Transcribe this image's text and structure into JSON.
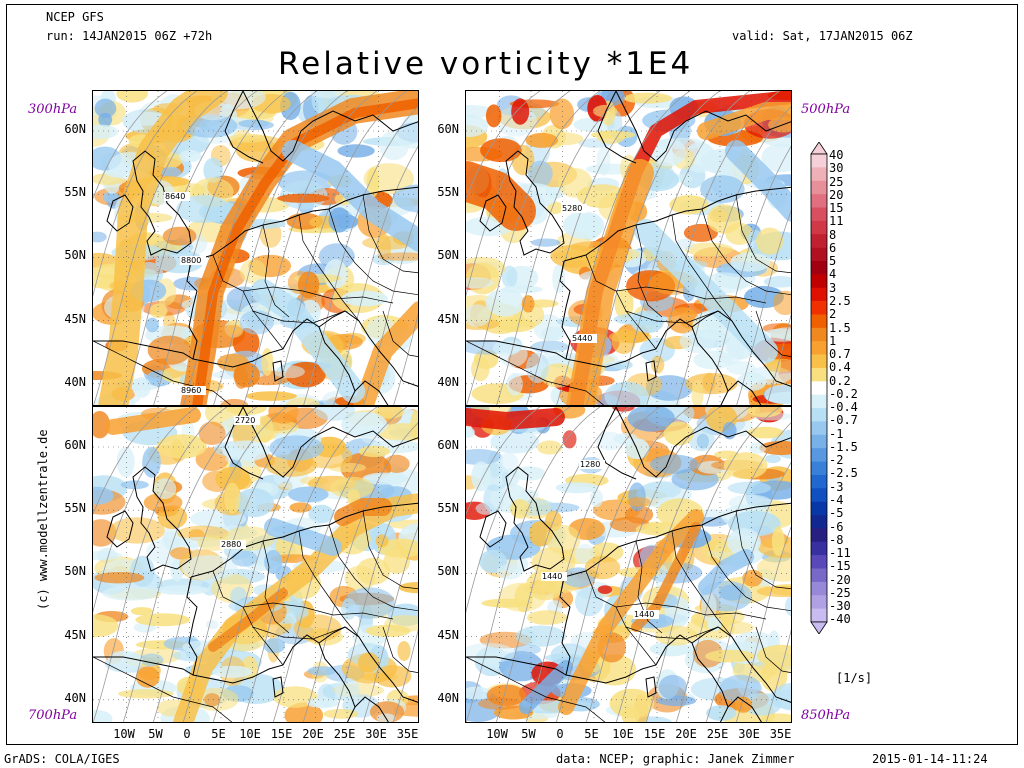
{
  "header": {
    "model": "NCEP GFS",
    "run": "run: 14JAN2015 06Z +72h",
    "valid": "valid: Sat, 17JAN2015 06Z",
    "title": "Relative vorticity *1E4"
  },
  "panels": [
    {
      "level": "300hPa",
      "contours": [
        "8640",
        "8800",
        "8960"
      ],
      "fill": "upper"
    },
    {
      "level": "500hPa",
      "contours": [
        "5280",
        "5440"
      ],
      "fill": "mid"
    },
    {
      "level": "700hPa",
      "contours": [
        "2720",
        "2880"
      ],
      "fill": "low"
    },
    {
      "level": "850hPa",
      "contours": [
        "1280",
        "1440",
        "1440"
      ],
      "fill": "low2"
    }
  ],
  "axes": {
    "lat_labels": [
      "60N",
      "55N",
      "50N",
      "45N",
      "40N"
    ],
    "lon_labels": [
      "10W",
      "5W",
      "0",
      "5E",
      "10E",
      "15E",
      "20E",
      "25E",
      "30E",
      "35E"
    ]
  },
  "colorbar": {
    "labels": [
      "40",
      "30",
      "25",
      "20",
      "15",
      "11",
      "8",
      "6",
      "5",
      "4",
      "3",
      "2.5",
      "2",
      "1.5",
      "1",
      "0.7",
      "0.4",
      "0.2",
      "-0.2",
      "-0.4",
      "-0.7",
      "-1",
      "-1.5",
      "-2",
      "-2.5",
      "-3",
      "-4",
      "-5",
      "-6",
      "-8",
      "-11",
      "-15",
      "-20",
      "-25",
      "-30",
      "-40"
    ],
    "colors": [
      "#f6d0d8",
      "#f0b0b8",
      "#e8909a",
      "#e07080",
      "#d85060",
      "#d03848",
      "#c02030",
      "#b01020",
      "#a00010",
      "#c00000",
      "#e01000",
      "#f03000",
      "#f06000",
      "#f08820",
      "#f8a030",
      "#f8c048",
      "#f8e080",
      "#ffffff",
      "#d8f0f8",
      "#b8e0f4",
      "#98c8f0",
      "#78b0e8",
      "#5898e0",
      "#3880d8",
      "#2068d0",
      "#1050c0",
      "#0838a8",
      "#102890",
      "#282080",
      "#3830a0",
      "#5848b8",
      "#7868c8",
      "#9888d8",
      "#b0a0e4",
      "#c8bcf0"
    ],
    "unit": "[1/s]"
  },
  "footer": {
    "left": "GrADS: COLA/IGES",
    "credits": "data: NCEP; graphic: Janek Zimmer",
    "timestamp": "2015-01-14-11:24"
  },
  "side_text": "(c) www.modellzentrale.de"
}
